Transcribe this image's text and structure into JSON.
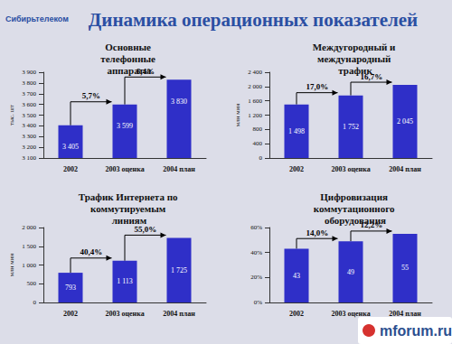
{
  "title": "Динамика операционных показателей",
  "logo": "Сибирьтелеком",
  "watermark": "mforum.ru",
  "chart_data": [
    {
      "type": "bar",
      "title": "Основные телефонные аппараты",
      "y_label": "тыс. шт",
      "categories": [
        "2002",
        "2003 оценка",
        "2004 план"
      ],
      "values": [
        3405,
        3599,
        3830
      ],
      "value_labels": [
        "3 405",
        "3 599",
        "3 830"
      ],
      "color": "#2f2fc8",
      "data_labels": true,
      "grid": false,
      "ylim": [
        3100,
        3900
      ],
      "yticks": [
        {
          "value": 3100,
          "label": "3 100"
        },
        {
          "value": 3200,
          "label": "3 200"
        },
        {
          "value": 3300,
          "label": "3 300"
        },
        {
          "value": 3400,
          "label": "3 400"
        },
        {
          "value": 3500,
          "label": "3 500"
        },
        {
          "value": 3600,
          "label": "3 600"
        },
        {
          "value": 3700,
          "label": "3 700"
        },
        {
          "value": 3800,
          "label": "3 800"
        },
        {
          "value": 3900,
          "label": "3 900"
        }
      ],
      "annotations": [
        "5,7%",
        "6,4%"
      ]
    },
    {
      "type": "bar",
      "title": "Междугородный и международный трафик",
      "y_label": "млн мин",
      "categories": [
        "2002",
        "2003 оценка",
        "2004 план"
      ],
      "values": [
        1498,
        1752,
        2045
      ],
      "value_labels": [
        "1 498",
        "1 752",
        "2 045"
      ],
      "color": "#2f2fc8",
      "data_labels": true,
      "grid": false,
      "ylim": [
        0,
        2400
      ],
      "yticks": [
        0,
        400,
        800,
        {
          "value": 1200,
          "label": "1 200"
        },
        {
          "value": 1600,
          "label": "1 600"
        },
        {
          "value": 2000,
          "label": "2 000"
        },
        {
          "value": 2400,
          "label": "2 400"
        }
      ],
      "annotations": [
        "17,0%",
        "16,7%"
      ]
    },
    {
      "type": "bar",
      "title": "Трафик Интернета по коммутируемым линиям",
      "y_label": "млн мин",
      "categories": [
        "2002",
        "2003 оценка",
        "2004 план"
      ],
      "values": [
        793,
        1113,
        1725
      ],
      "value_labels": [
        "793",
        "1 113",
        "1 725"
      ],
      "color": "#2f2fc8",
      "data_labels": true,
      "grid": false,
      "ylim": [
        0,
        2000
      ],
      "yticks": [
        0,
        500,
        {
          "value": 1000,
          "label": "1 000"
        },
        {
          "value": 1500,
          "label": "1 500"
        },
        {
          "value": 2000,
          "label": "2 000"
        }
      ],
      "annotations": [
        "40,4%",
        "55,0%"
      ]
    },
    {
      "type": "bar",
      "title": "Цифровизация коммутационного оборудования",
      "categories": [
        "2002",
        "2003 оценка",
        "2004 план"
      ],
      "values": [
        43,
        49,
        55
      ],
      "color": "#2f2fc8",
      "data_labels": true,
      "grid": false,
      "ylim": [
        0,
        60
      ],
      "yticks": [
        {
          "value": 0,
          "label": "0%"
        },
        {
          "value": 20,
          "label": "20%"
        },
        {
          "value": 40,
          "label": "40%"
        },
        {
          "value": 60,
          "label": "60%"
        }
      ],
      "annotations": [
        "14,0%",
        "12,2%"
      ]
    }
  ]
}
